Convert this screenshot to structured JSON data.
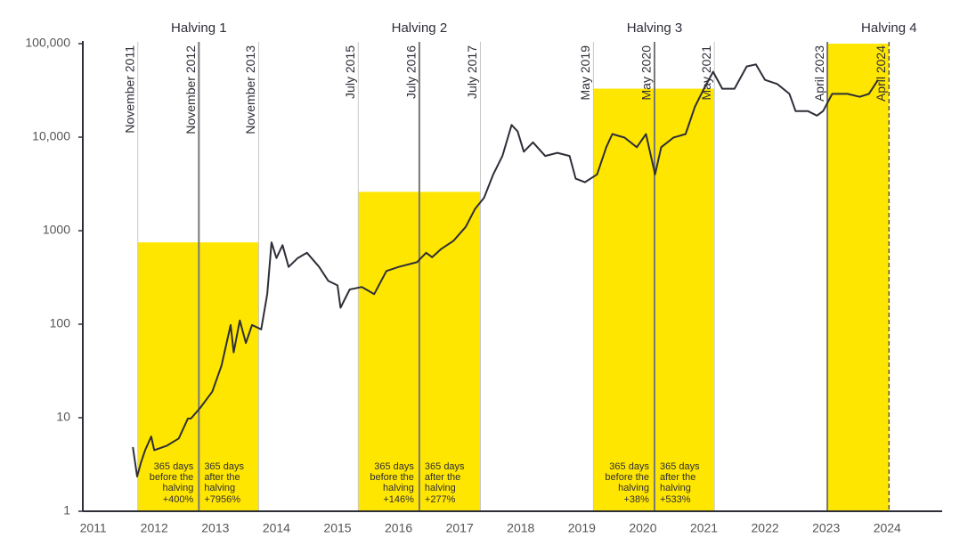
{
  "chart_data": {
    "type": "line",
    "log_y": true,
    "xlim": [
      2010.83,
      2024.9
    ],
    "ylim": [
      1,
      100000
    ],
    "xticks": [
      2011,
      2012,
      2013,
      2014,
      2015,
      2016,
      2017,
      2018,
      2019,
      2020,
      2021,
      2022,
      2023,
      2024
    ],
    "yticks": [
      1,
      10,
      100,
      1000,
      {
        "value": 10000,
        "label": "10,000"
      },
      {
        "value": 100000,
        "label": "100,000"
      }
    ],
    "band_color": "#ffe600",
    "x": [
      2011.65,
      2011.72,
      2011.78,
      2011.85,
      2011.95,
      2012.0,
      2012.2,
      2012.4,
      2012.55,
      2012.6,
      2012.75,
      2012.95,
      2013.1,
      2013.25,
      2013.3,
      2013.4,
      2013.5,
      2013.6,
      2013.75,
      2013.85,
      2013.92,
      2014.0,
      2014.1,
      2014.2,
      2014.35,
      2014.5,
      2014.7,
      2014.85,
      2015.0,
      2015.05,
      2015.2,
      2015.4,
      2015.6,
      2015.8,
      2016.0,
      2016.3,
      2016.45,
      2016.55,
      2016.7,
      2016.9,
      2017.1,
      2017.25,
      2017.4,
      2017.55,
      2017.7,
      2017.85,
      2017.95,
      2018.05,
      2018.2,
      2018.4,
      2018.6,
      2018.8,
      2018.9,
      2019.05,
      2019.25,
      2019.4,
      2019.5,
      2019.7,
      2019.9,
      2020.05,
      2020.2,
      2020.3,
      2020.5,
      2020.7,
      2020.85,
      2021.0,
      2021.15,
      2021.3,
      2021.5,
      2021.7,
      2021.85,
      2022.0,
      2022.2,
      2022.4,
      2022.5,
      2022.7,
      2022.85,
      2022.95,
      2023.1,
      2023.35,
      2023.55,
      2023.7,
      2023.85
    ],
    "series": [
      {
        "color": "#2e2e38",
        "values": [
          4.85,
          2.35,
          3.3,
          4.5,
          6.3,
          4.5,
          5,
          6,
          9.8,
          9.8,
          12.7,
          19,
          36,
          98,
          50,
          110,
          63,
          98,
          88,
          210,
          750,
          510,
          700,
          410,
          510,
          580,
          410,
          290,
          260,
          150,
          235,
          250,
          210,
          370,
          410,
          460,
          580,
          520,
          640,
          780,
          1100,
          1700,
          2250,
          4000,
          6300,
          13500,
          11500,
          7000,
          8800,
          6300,
          6800,
          6300,
          3600,
          3300,
          4000,
          7800,
          10800,
          9900,
          7800,
          10800,
          4000,
          7800,
          9900,
          10800,
          21000,
          33000,
          50000,
          33000,
          33000,
          57000,
          60000,
          41000,
          37000,
          29000,
          19000,
          19000,
          17000,
          19000,
          29000,
          29000,
          27000,
          29000,
          41000
        ]
      }
    ],
    "bands": [
      {
        "title": "Halving 1",
        "top": 750,
        "start": {
          "label": "November 2011",
          "x": 2011.73,
          "style": "light"
        },
        "halving": {
          "label": "November 2012",
          "x": 2012.73,
          "style": "dark"
        },
        "end": {
          "label": "November 2013",
          "x": 2013.71,
          "style": "light"
        },
        "before": {
          "lines": [
            "365 days",
            "before the",
            "halving"
          ],
          "change": 400,
          "change_label": "+400%"
        },
        "after": {
          "lines": [
            "365 days",
            "after the",
            "halving"
          ],
          "change": 7956,
          "change_label": "+7956%"
        }
      },
      {
        "title": "Halving 2",
        "top": 2600,
        "start": {
          "label": "July 2015",
          "x": 2015.34,
          "style": "light"
        },
        "halving": {
          "label": "July 2016",
          "x": 2016.34,
          "style": "dark"
        },
        "end": {
          "label": "July 2017",
          "x": 2017.34,
          "style": "light"
        },
        "before": {
          "lines": [
            "365 days",
            "before the",
            "halving"
          ],
          "change": 146,
          "change_label": "+146%"
        },
        "after": {
          "lines": [
            "365 days",
            "after the",
            "halving"
          ],
          "change": 277,
          "change_label": "+277%"
        }
      },
      {
        "title": "Halving 3",
        "top": 33000,
        "start": {
          "label": "May 2019",
          "x": 2019.19,
          "style": "light"
        },
        "halving": {
          "label": "May 2020",
          "x": 2020.19,
          "style": "dark"
        },
        "end": {
          "label": "May 2021",
          "x": 2021.17,
          "style": "light"
        },
        "before": {
          "lines": [
            "365 days",
            "before the",
            "halving"
          ],
          "change": 38,
          "change_label": "+38%"
        },
        "after": {
          "lines": [
            "365 days",
            "after the",
            "halving"
          ],
          "change": 533,
          "change_label": "+533%"
        }
      },
      {
        "title": "Halving 4",
        "top": 100000,
        "start": {
          "label": "April 2023",
          "x": 2023.02,
          "style": "dark"
        },
        "halving": {
          "label": "April 2024",
          "x": 2024.03,
          "style": "dashed"
        }
      }
    ]
  }
}
